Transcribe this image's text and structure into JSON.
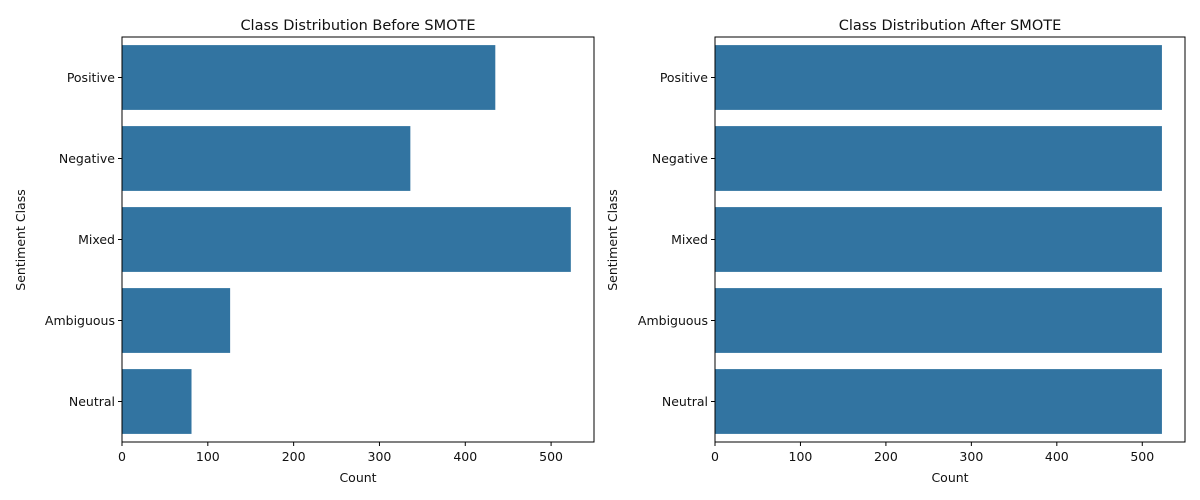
{
  "chart_data": [
    {
      "type": "bar",
      "orientation": "horizontal",
      "title": "Class Distribution Before SMOTE",
      "xlabel": "Count",
      "ylabel": "Sentiment Class",
      "categories": [
        "Positive",
        "Negative",
        "Mixed",
        "Ambiguous",
        "Neutral"
      ],
      "values": [
        435,
        336,
        523,
        126,
        81
      ],
      "xlim": [
        0,
        550
      ],
      "xticks": [
        0,
        100,
        200,
        300,
        400,
        500
      ],
      "grid": false,
      "color": "#3274a1"
    },
    {
      "type": "bar",
      "orientation": "horizontal",
      "title": "Class Distribution After SMOTE",
      "xlabel": "Count",
      "ylabel": "Sentiment Class",
      "categories": [
        "Positive",
        "Negative",
        "Mixed",
        "Ambiguous",
        "Neutral"
      ],
      "values": [
        523,
        523,
        523,
        523,
        523
      ],
      "xlim": [
        0,
        550
      ],
      "xticks": [
        0,
        100,
        200,
        300,
        400,
        500
      ],
      "grid": false,
      "color": "#3274a1"
    }
  ]
}
